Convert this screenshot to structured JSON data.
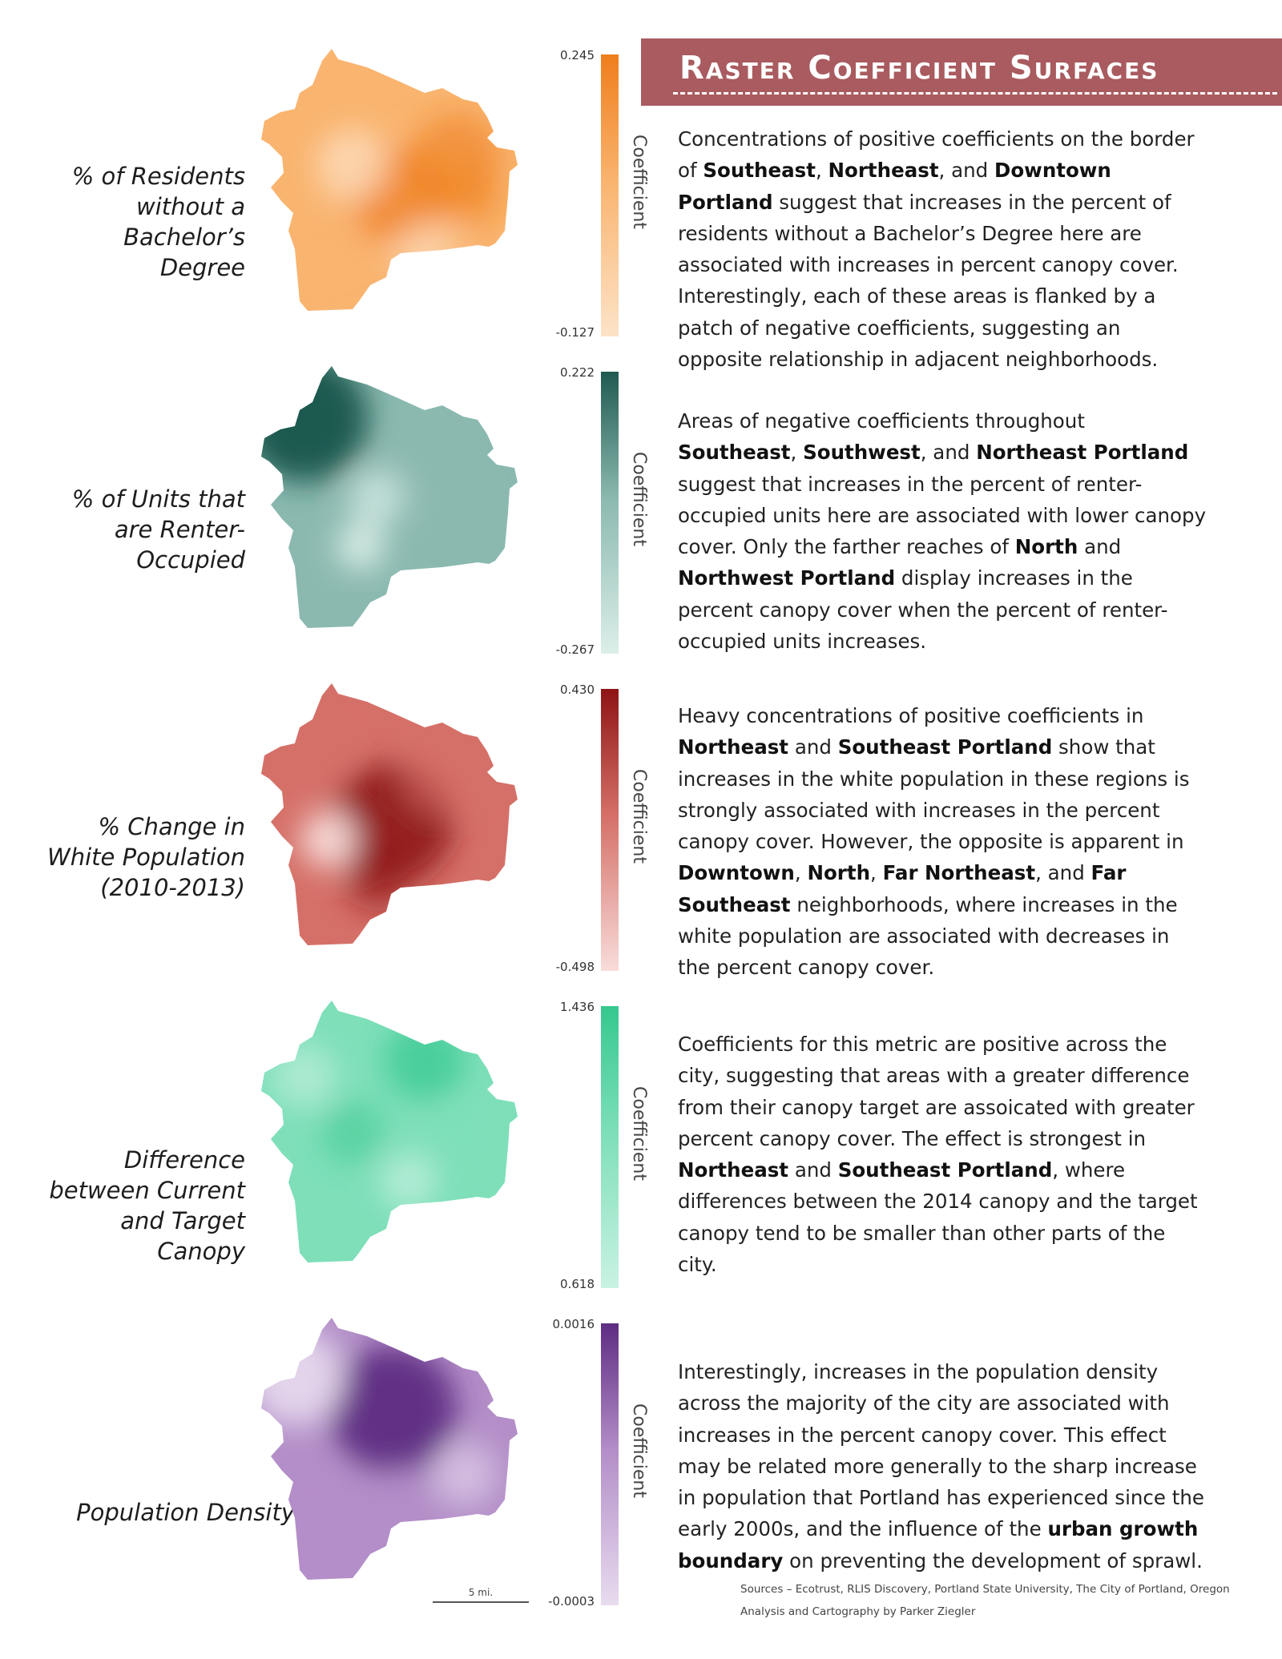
{
  "header": {
    "title": "Raster Coefficient Surfaces"
  },
  "legend_title": "Coefficient",
  "panels": [
    {
      "label": "% of Residents without a Bachelor’s Degree",
      "legend_max": "0.245",
      "legend_min": "-0.127",
      "colors": {
        "light": "#fde3c8",
        "mid": "#f9b46f",
        "dark": "#ef7e1c"
      },
      "description": [
        {
          "t": "Concentrations of positive coefficients on the border of "
        },
        {
          "t": "Southeast",
          "b": true
        },
        {
          "t": ", "
        },
        {
          "t": "Northeast",
          "b": true
        },
        {
          "t": ", and "
        },
        {
          "t": "Downtown Portland",
          "b": true
        },
        {
          "t": " suggest that increases in the percent of residents without a Bachelor’s Degree here are associated with increases in percent canopy cover. Interestingly, each of these areas is flanked by a patch of negative coefficients, suggesting an opposite relationship in adjacent neighborhoods."
        }
      ]
    },
    {
      "label": "% of Units that are Renter-Occupied",
      "legend_max": "0.222",
      "legend_min": "-0.267",
      "colors": {
        "light": "#dcefe9",
        "mid": "#8bb9b0",
        "dark": "#1f5a50"
      },
      "description": [
        {
          "t": "Areas of negative coefficients throughout "
        },
        {
          "t": "Southeast",
          "b": true
        },
        {
          "t": ", "
        },
        {
          "t": "Southwest",
          "b": true
        },
        {
          "t": ", and "
        },
        {
          "t": "Northeast Portland",
          "b": true
        },
        {
          "t": " suggest that increases in the percent of renter-occupied units here are associated with lower canopy cover. Only the farther reaches of "
        },
        {
          "t": "North",
          "b": true
        },
        {
          "t": " and "
        },
        {
          "t": "Northwest Portland",
          "b": true
        },
        {
          "t": " display increases in the percent canopy cover when the percent of renter-occupied units increases."
        }
      ]
    },
    {
      "label": "% Change in White Population (2010-2013)",
      "legend_max": "0.430",
      "legend_min": "-0.498",
      "colors": {
        "light": "#f8dcda",
        "mid": "#d57068",
        "dark": "#8e1414"
      },
      "description": [
        {
          "t": "Heavy concentrations of positive coefficients in "
        },
        {
          "t": "Northeast",
          "b": true
        },
        {
          "t": " and "
        },
        {
          "t": "Southeast Portland",
          "b": true
        },
        {
          "t": " show that increases in the white population in these regions is strongly associated with increases in the percent canopy cover. However, the opposite is apparent in "
        },
        {
          "t": "Downtown",
          "b": true
        },
        {
          "t": ", "
        },
        {
          "t": "North",
          "b": true
        },
        {
          "t": ", "
        },
        {
          "t": "Far Northeast",
          "b": true
        },
        {
          "t": ", and "
        },
        {
          "t": "Far Southeast",
          "b": true
        },
        {
          "t": " neighborhoods, where increases in the white population are associated with decreases in the percent canopy cover."
        }
      ]
    },
    {
      "label": "Difference between Current and Target Canopy",
      "legend_max": "1.436",
      "legend_min": "0.618",
      "colors": {
        "light": "#c9f2e3",
        "mid": "#7edfb9",
        "dark": "#35c88e"
      },
      "description": [
        {
          "t": "Coefficients for this metric are positive across the city, suggesting that areas with a greater difference from their canopy target are assoicated with greater percent canopy cover. The effect is strongest in "
        },
        {
          "t": "Northeast",
          "b": true
        },
        {
          "t": " and "
        },
        {
          "t": "Southeast Portland",
          "b": true
        },
        {
          "t": ", where differences between the 2014 canopy and the target canopy tend to be smaller than other parts of the city."
        }
      ]
    },
    {
      "label": "Population Density",
      "legend_max": "0.0016",
      "legend_min": "-0.0003",
      "colors": {
        "light": "#e8dcef",
        "mid": "#b38ec8",
        "dark": "#5e2c82"
      },
      "description": [
        {
          "t": "Interestingly, increases in the population density across the majority of the city are associated with increases in the percent canopy cover. This effect may be related more generally to the sharp increase in population that Portland has experienced since the early 2000s, and the influence of the "
        },
        {
          "t": "urban growth boundary",
          "b": true
        },
        {
          "t": " on preventing the development of sprawl."
        }
      ]
    }
  ],
  "scale_bar": {
    "label": "5 mi."
  },
  "sources": {
    "line1": "Sources – Ecotrust, RLIS Discovery, Portland State University, The City of Portland, Oregon",
    "line2": "Analysis and Cartography by Parker Ziegler"
  }
}
